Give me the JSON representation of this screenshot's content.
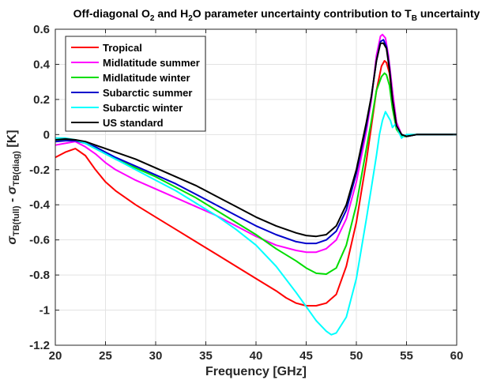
{
  "chart_data": {
    "type": "line",
    "title": {
      "parts": [
        {
          "t": "Off-diagonal O"
        },
        {
          "t": "2",
          "sub": true
        },
        {
          "t": " and H"
        },
        {
          "t": "2",
          "sub": true
        },
        {
          "t": "O parameter uncertainty contribution to T"
        },
        {
          "t": "B",
          "sub": true
        },
        {
          "t": " uncertainty"
        }
      ]
    },
    "xlabel": "Frequency [GHz]",
    "ylabel": {
      "parts": [
        {
          "t": "σ",
          "italic": true
        },
        {
          "t": "TB(full)",
          "sub": true
        },
        {
          "t": " - "
        },
        {
          "t": "σ",
          "italic": true
        },
        {
          "t": "TB(diag)",
          "sub": true
        },
        {
          "t": " [K]"
        }
      ]
    },
    "xlim": [
      20,
      60
    ],
    "ylim": [
      -1.2,
      0.6
    ],
    "xticks": [
      20,
      25,
      30,
      35,
      40,
      45,
      50,
      55,
      60
    ],
    "xtick_labels": [
      "20",
      "25",
      "30",
      "35",
      "40",
      "45",
      "50",
      "55",
      "60"
    ],
    "yticks": [
      0.6,
      0.4,
      0.2,
      0,
      -0.2,
      -0.4,
      -0.6,
      -0.8,
      -1,
      -1.2
    ],
    "ytick_labels": [
      "0.6",
      "0.4",
      "0.2",
      "0",
      "-0.2",
      "-0.4",
      "-0.6",
      "-0.8",
      "-1",
      "-1.2"
    ],
    "grid": true,
    "legend_position": "top-left",
    "series": [
      {
        "name": "Tropical",
        "color": "#ff0000",
        "points": [
          [
            20,
            -0.13
          ],
          [
            21,
            -0.1
          ],
          [
            22,
            -0.08
          ],
          [
            23,
            -0.12
          ],
          [
            24,
            -0.2
          ],
          [
            25,
            -0.27
          ],
          [
            26,
            -0.32
          ],
          [
            28,
            -0.4
          ],
          [
            30,
            -0.47
          ],
          [
            32,
            -0.54
          ],
          [
            34,
            -0.61
          ],
          [
            36,
            -0.68
          ],
          [
            38,
            -0.75
          ],
          [
            40,
            -0.82
          ],
          [
            42,
            -0.89
          ],
          [
            43,
            -0.93
          ],
          [
            44,
            -0.96
          ],
          [
            45,
            -0.975
          ],
          [
            46,
            -0.975
          ],
          [
            47,
            -0.96
          ],
          [
            48,
            -0.91
          ],
          [
            49,
            -0.75
          ],
          [
            50,
            -0.5
          ],
          [
            51,
            -0.15
          ],
          [
            51.5,
            0.05
          ],
          [
            52,
            0.25
          ],
          [
            52.5,
            0.39
          ],
          [
            52.8,
            0.42
          ],
          [
            53,
            0.41
          ],
          [
            53.3,
            0.35
          ],
          [
            53.6,
            0.2
          ],
          [
            54,
            0.05
          ],
          [
            54.5,
            -0.01
          ],
          [
            55,
            -0.01
          ],
          [
            56,
            0
          ],
          [
            60,
            0
          ]
        ]
      },
      {
        "name": "Midlatitude summer",
        "color": "#ff00ff",
        "points": [
          [
            20,
            -0.06
          ],
          [
            21,
            -0.05
          ],
          [
            22,
            -0.04
          ],
          [
            23,
            -0.07
          ],
          [
            24,
            -0.11
          ],
          [
            25,
            -0.16
          ],
          [
            26,
            -0.2
          ],
          [
            28,
            -0.26
          ],
          [
            30,
            -0.31
          ],
          [
            32,
            -0.36
          ],
          [
            34,
            -0.41
          ],
          [
            36,
            -0.46
          ],
          [
            38,
            -0.52
          ],
          [
            40,
            -0.58
          ],
          [
            42,
            -0.63
          ],
          [
            44,
            -0.66
          ],
          [
            45,
            -0.67
          ],
          [
            46,
            -0.67
          ],
          [
            47,
            -0.65
          ],
          [
            48,
            -0.6
          ],
          [
            49,
            -0.48
          ],
          [
            50,
            -0.27
          ],
          [
            51,
            0.02
          ],
          [
            51.5,
            0.2
          ],
          [
            52,
            0.45
          ],
          [
            52.4,
            0.56
          ],
          [
            52.6,
            0.57
          ],
          [
            52.9,
            0.55
          ],
          [
            53.2,
            0.45
          ],
          [
            53.6,
            0.25
          ],
          [
            54,
            0.07
          ],
          [
            54.5,
            0
          ],
          [
            55,
            -0.01
          ],
          [
            56,
            0
          ],
          [
            60,
            0
          ]
        ]
      },
      {
        "name": "Midlatitude winter",
        "color": "#00dd00",
        "points": [
          [
            20,
            -0.04
          ],
          [
            21,
            -0.03
          ],
          [
            22,
            -0.03
          ],
          [
            23,
            -0.05
          ],
          [
            24,
            -0.08
          ],
          [
            25,
            -0.11
          ],
          [
            26,
            -0.14
          ],
          [
            28,
            -0.19
          ],
          [
            30,
            -0.24
          ],
          [
            32,
            -0.3
          ],
          [
            34,
            -0.36
          ],
          [
            36,
            -0.43
          ],
          [
            38,
            -0.5
          ],
          [
            40,
            -0.57
          ],
          [
            42,
            -0.65
          ],
          [
            44,
            -0.72
          ],
          [
            45,
            -0.76
          ],
          [
            46,
            -0.79
          ],
          [
            47,
            -0.795
          ],
          [
            48,
            -0.76
          ],
          [
            49,
            -0.63
          ],
          [
            50,
            -0.4
          ],
          [
            51,
            -0.08
          ],
          [
            51.5,
            0.08
          ],
          [
            52,
            0.25
          ],
          [
            52.5,
            0.33
          ],
          [
            52.8,
            0.35
          ],
          [
            53,
            0.34
          ],
          [
            53.3,
            0.28
          ],
          [
            53.6,
            0.15
          ],
          [
            54,
            0.03
          ],
          [
            54.5,
            -0.01
          ],
          [
            55,
            -0.01
          ],
          [
            56,
            0
          ],
          [
            60,
            0
          ]
        ]
      },
      {
        "name": "Subarctic summer",
        "color": "#0000cc",
        "points": [
          [
            20,
            -0.04
          ],
          [
            21,
            -0.035
          ],
          [
            22,
            -0.035
          ],
          [
            23,
            -0.05
          ],
          [
            24,
            -0.07
          ],
          [
            25,
            -0.1
          ],
          [
            26,
            -0.13
          ],
          [
            28,
            -0.18
          ],
          [
            30,
            -0.23
          ],
          [
            32,
            -0.28
          ],
          [
            34,
            -0.34
          ],
          [
            36,
            -0.4
          ],
          [
            38,
            -0.46
          ],
          [
            40,
            -0.52
          ],
          [
            42,
            -0.57
          ],
          [
            44,
            -0.61
          ],
          [
            45,
            -0.62
          ],
          [
            46,
            -0.62
          ],
          [
            47,
            -0.6
          ],
          [
            48,
            -0.55
          ],
          [
            49,
            -0.43
          ],
          [
            50,
            -0.22
          ],
          [
            51,
            0.05
          ],
          [
            51.5,
            0.22
          ],
          [
            52,
            0.42
          ],
          [
            52.4,
            0.53
          ],
          [
            52.7,
            0.54
          ],
          [
            53,
            0.5
          ],
          [
            53.3,
            0.38
          ],
          [
            53.6,
            0.2
          ],
          [
            54,
            0.05
          ],
          [
            54.5,
            0
          ],
          [
            55,
            -0.01
          ],
          [
            56,
            0
          ],
          [
            60,
            0
          ]
        ]
      },
      {
        "name": "Subarctic winter",
        "color": "#00ffff",
        "points": [
          [
            20,
            -0.02
          ],
          [
            21,
            -0.02
          ],
          [
            22,
            -0.03
          ],
          [
            23,
            -0.05
          ],
          [
            24,
            -0.08
          ],
          [
            25,
            -0.11
          ],
          [
            26,
            -0.14
          ],
          [
            28,
            -0.2
          ],
          [
            30,
            -0.26
          ],
          [
            32,
            -0.32
          ],
          [
            34,
            -0.39
          ],
          [
            36,
            -0.46
          ],
          [
            38,
            -0.54
          ],
          [
            40,
            -0.63
          ],
          [
            42,
            -0.75
          ],
          [
            44,
            -0.9
          ],
          [
            45,
            -0.98
          ],
          [
            46,
            -1.06
          ],
          [
            47,
            -1.12
          ],
          [
            47.5,
            -1.14
          ],
          [
            48,
            -1.13
          ],
          [
            49,
            -1.04
          ],
          [
            50,
            -0.82
          ],
          [
            51,
            -0.48
          ],
          [
            51.5,
            -0.3
          ],
          [
            52,
            -0.12
          ],
          [
            52.3,
            0
          ],
          [
            52.6,
            0.08
          ],
          [
            52.9,
            0.13
          ],
          [
            53.2,
            0.1
          ],
          [
            53.4,
            0.08
          ],
          [
            53.6,
            0.04
          ],
          [
            53.9,
            0.06
          ],
          [
            54.2,
            0.02
          ],
          [
            54.5,
            -0.02
          ],
          [
            54.7,
            -0.01
          ],
          [
            55,
            0
          ],
          [
            56,
            0
          ],
          [
            60,
            0
          ]
        ]
      },
      {
        "name": "US standard",
        "color": "#000000",
        "points": [
          [
            20,
            -0.03
          ],
          [
            21,
            -0.025
          ],
          [
            22,
            -0.03
          ],
          [
            23,
            -0.04
          ],
          [
            24,
            -0.06
          ],
          [
            25,
            -0.08
          ],
          [
            26,
            -0.1
          ],
          [
            28,
            -0.14
          ],
          [
            30,
            -0.19
          ],
          [
            32,
            -0.24
          ],
          [
            34,
            -0.29
          ],
          [
            36,
            -0.35
          ],
          [
            38,
            -0.41
          ],
          [
            40,
            -0.47
          ],
          [
            42,
            -0.52
          ],
          [
            44,
            -0.56
          ],
          [
            45,
            -0.575
          ],
          [
            46,
            -0.58
          ],
          [
            47,
            -0.57
          ],
          [
            48,
            -0.52
          ],
          [
            49,
            -0.4
          ],
          [
            50,
            -0.2
          ],
          [
            51,
            0.07
          ],
          [
            51.5,
            0.22
          ],
          [
            52,
            0.42
          ],
          [
            52.4,
            0.52
          ],
          [
            52.7,
            0.52
          ],
          [
            53,
            0.49
          ],
          [
            53.3,
            0.37
          ],
          [
            53.6,
            0.2
          ],
          [
            54,
            0.05
          ],
          [
            54.5,
            0
          ],
          [
            55,
            -0.01
          ],
          [
            56,
            0
          ],
          [
            60,
            0
          ]
        ]
      }
    ]
  }
}
